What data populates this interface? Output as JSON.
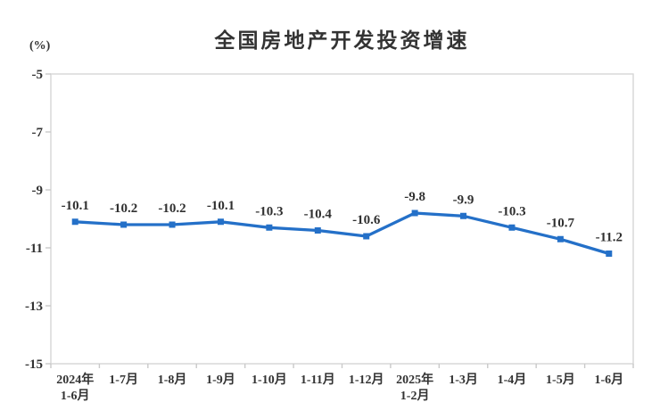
{
  "chart_data": {
    "type": "line",
    "title": "全国房地产开发投资增速",
    "unit_label": "(%)",
    "categories": [
      "2024年\n1-6月",
      "1-7月",
      "1-8月",
      "1-9月",
      "1-10月",
      "1-11月",
      "1-12月",
      "2025年\n1-2月",
      "1-3月",
      "1-4月",
      "1-5月",
      "1-6月"
    ],
    "values": [
      -10.1,
      -10.2,
      -10.2,
      -10.1,
      -10.3,
      -10.4,
      -10.6,
      -9.8,
      -9.9,
      -10.3,
      -10.7,
      -11.2
    ],
    "data_labels": [
      "-10.1",
      "-10.2",
      "-10.2",
      "-10.1",
      "-10.3",
      "-10.4",
      "-10.6",
      "-9.8",
      "-9.9",
      "-10.3",
      "-10.7",
      "-11.2"
    ],
    "ylim": [
      -15,
      -5
    ],
    "yticks": [
      -5,
      -7,
      -9,
      -11,
      -13,
      -15
    ],
    "grid": false,
    "legend": "none",
    "marker": "square",
    "colors": {
      "line": "#2470C8",
      "marker": "#2470C8",
      "axis": "#D6D6D6",
      "tick": "#C9C9C9",
      "text": "#333333"
    }
  }
}
